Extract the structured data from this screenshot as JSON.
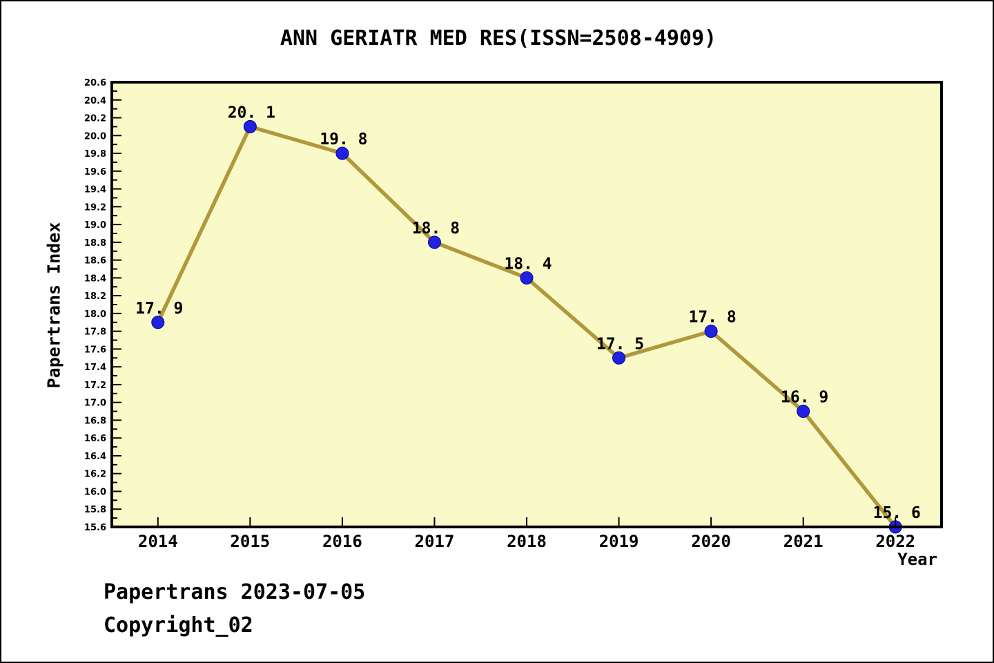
{
  "title": "ANN GERIATR MED RES(ISSN=2508-4909)",
  "footer": {
    "line1": "Papertrans 2023-07-05",
    "line2": "Copyright_02"
  },
  "chart_data": {
    "type": "line",
    "title": "ANN GERIATR MED RES(ISSN=2508-4909)",
    "xlabel": "Year",
    "ylabel": "Papertrans Index",
    "x": [
      2014,
      2015,
      2016,
      2017,
      2018,
      2019,
      2020,
      2021,
      2022
    ],
    "values": [
      17.9,
      20.1,
      19.8,
      18.8,
      18.4,
      17.5,
      17.8,
      16.9,
      15.6
    ],
    "point_labels": [
      "17. 9",
      "20. 1",
      "19. 8",
      "18. 8",
      "18. 4",
      "17. 5",
      "17. 8",
      "16. 9",
      "15. 6"
    ],
    "xlim": [
      2013.5,
      2022.5
    ],
    "ylim": [
      15.6,
      20.6
    ],
    "ytick_step": 0.2,
    "ytick_minor_step": 0.1,
    "grid": false,
    "legend": null,
    "colors": {
      "plot_bg": "#FAFAC8",
      "line": "#B0983C",
      "marker": "#2121E0",
      "marker_edge": "#000099",
      "axis": "#000000",
      "text": "#000000"
    }
  }
}
